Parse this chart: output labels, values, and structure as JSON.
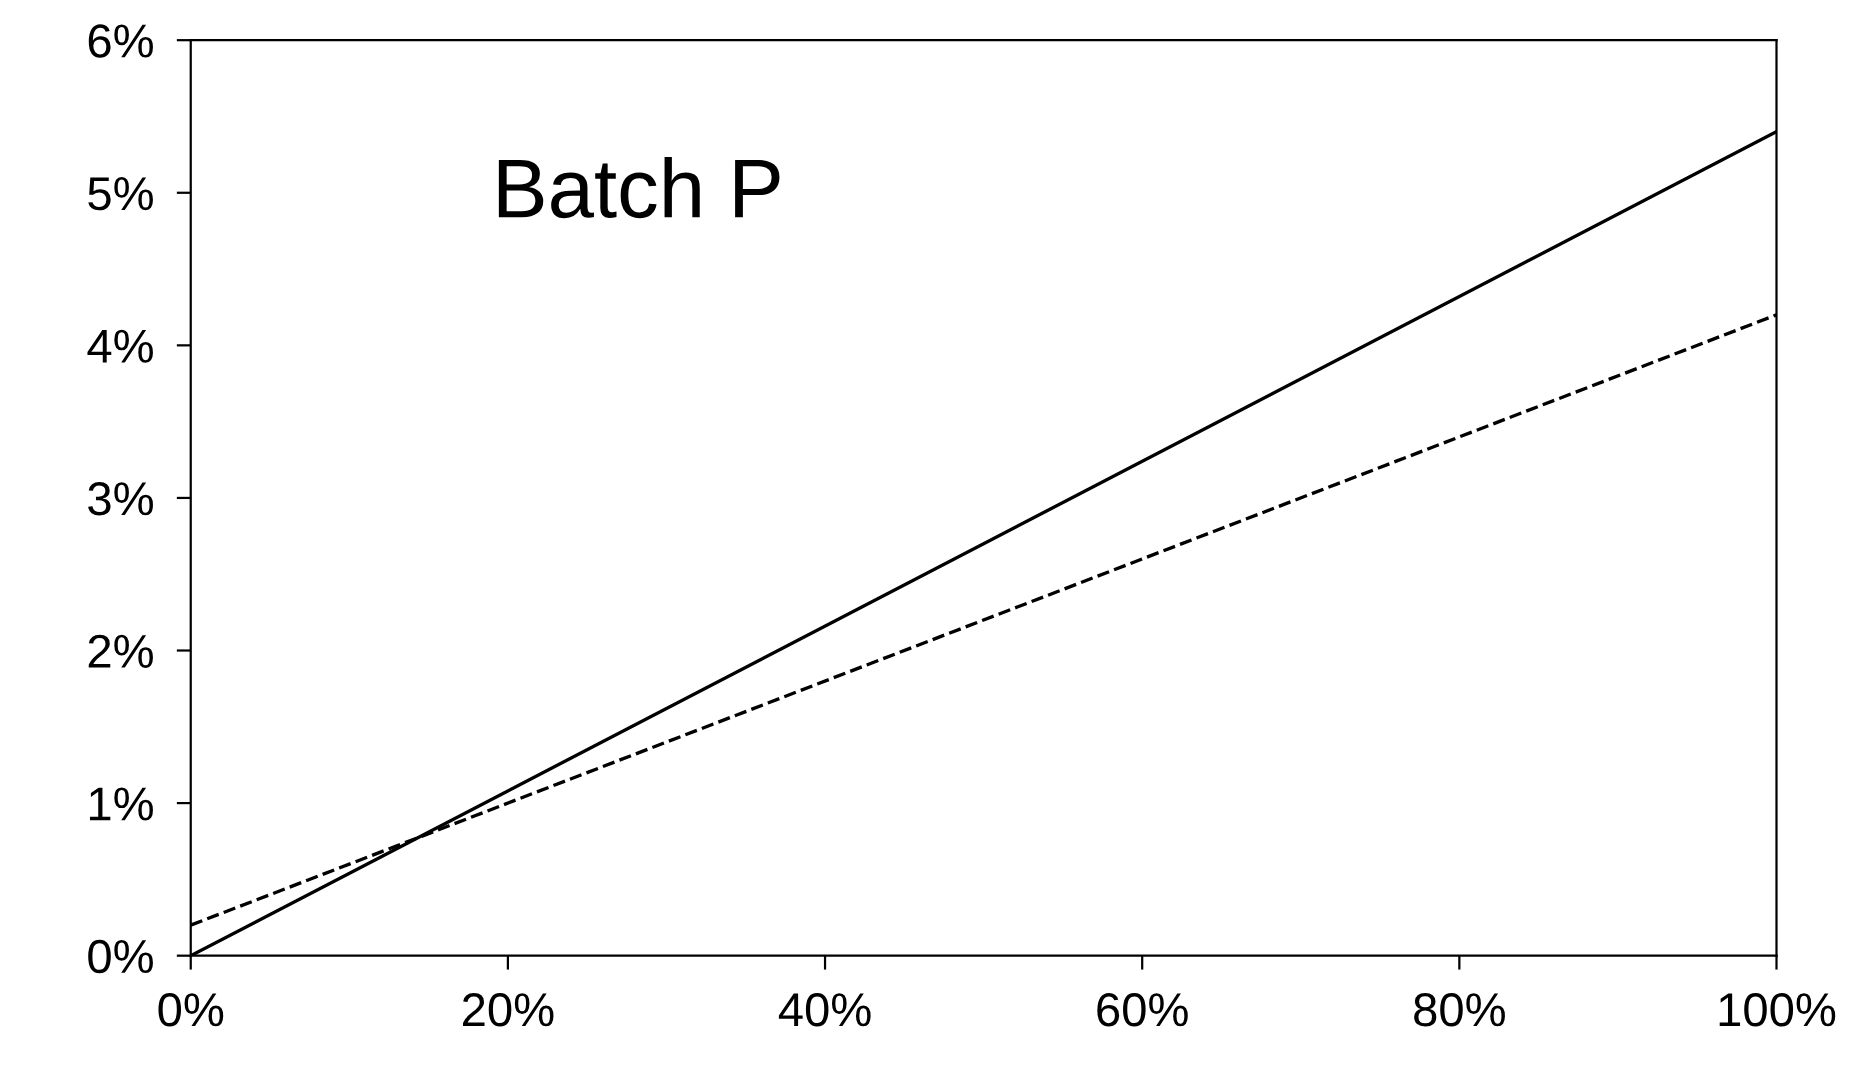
{
  "chart_data": {
    "type": "line",
    "x": [
      0,
      100
    ],
    "series": [
      {
        "color": "#000000",
        "line_style": "solid",
        "values": [
          0,
          5.4
        ]
      },
      {
        "color": "#000000",
        "line_style": "dashed",
        "values": [
          0.2,
          4.2
        ]
      }
    ],
    "annotations": [
      "Batch P"
    ],
    "xlim": [
      0,
      100
    ],
    "xticks": [
      {
        "value": 0,
        "label": "0%"
      },
      {
        "value": 20,
        "label": "20%"
      },
      {
        "value": 40,
        "label": "40%"
      },
      {
        "value": 60,
        "label": "60%"
      },
      {
        "value": 80,
        "label": "80%"
      },
      {
        "value": 100,
        "label": "100%"
      }
    ],
    "ylim": [
      0,
      6
    ],
    "yticks": [
      {
        "value": 0,
        "label": "0%"
      },
      {
        "value": 1,
        "label": "1%"
      },
      {
        "value": 2,
        "label": "2%"
      },
      {
        "value": 3,
        "label": "3%"
      },
      {
        "value": 4,
        "label": "4%"
      },
      {
        "value": 5,
        "label": "5%"
      },
      {
        "value": 6,
        "label": "6%"
      }
    ],
    "grid": false,
    "legend": false,
    "marker": "none"
  }
}
